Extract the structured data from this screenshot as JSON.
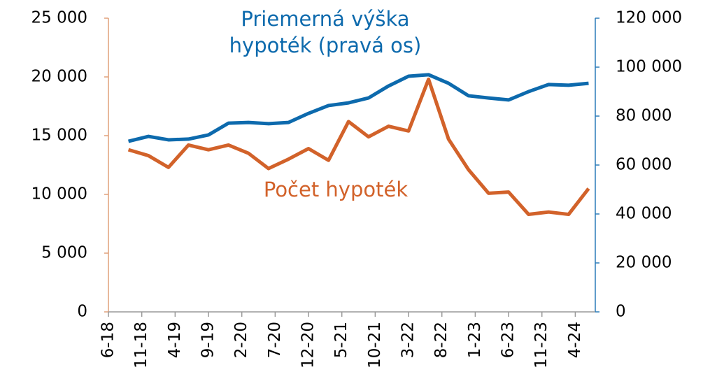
{
  "chart_data": {
    "type": "line",
    "x": [
      "9-18",
      "12-18",
      "3-19",
      "6-19",
      "9-19",
      "12-19",
      "3-20",
      "6-20",
      "9-20",
      "12-20",
      "3-21",
      "6-21",
      "9-21",
      "12-21",
      "3-22",
      "6-22",
      "9-22",
      "12-22",
      "3-23",
      "6-23",
      "9-23",
      "12-23",
      "3-24",
      "6-24"
    ],
    "xlim": [
      "6-18",
      "7-24"
    ],
    "xticks": [
      "6-18",
      "11-18",
      "4-19",
      "9-19",
      "2-20",
      "7-20",
      "12-20",
      "5-21",
      "10-21",
      "3-22",
      "8-22",
      "1-23",
      "6-23",
      "11-23",
      "4-24"
    ],
    "ylim": [
      0,
      25000
    ],
    "yticks": [
      0,
      {
        "value": 5000,
        "label": "5 000"
      },
      {
        "value": 10000,
        "label": "10 000"
      },
      {
        "value": 15000,
        "label": "15 000"
      },
      {
        "value": 20000,
        "label": "20 000"
      },
      {
        "value": 25000,
        "label": "25 000"
      }
    ],
    "y2lim": [
      0,
      120000
    ],
    "y2ticks": [
      0,
      {
        "value": 20000,
        "label": "20 000"
      },
      {
        "value": 40000,
        "label": "40 000"
      },
      {
        "value": 60000,
        "label": "60 000"
      },
      {
        "value": 80000,
        "label": "80 000"
      },
      {
        "value": 100000,
        "label": "100 000"
      },
      {
        "value": 120000,
        "label": "120 000"
      }
    ],
    "series": [
      {
        "name": "Počet hypoték",
        "color": "#d2622a",
        "values": [
          13800,
          13300,
          12300,
          14200,
          13800,
          14200,
          13500,
          12200,
          13000,
          13900,
          12900,
          16200,
          14900,
          15800,
          15400,
          19800,
          14700,
          12100,
          10100,
          10200,
          8300,
          8500,
          8300,
          10500
        ]
      },
      {
        "name": "Priemerná výška hypoték (pravá os)",
        "color": "#0d6aad",
        "axis": "y2",
        "values": [
          69700,
          71700,
          70300,
          70600,
          72300,
          77100,
          77400,
          76900,
          77400,
          81100,
          84300,
          85400,
          87400,
          92300,
          96300,
          96900,
          93400,
          88300,
          87400,
          86600,
          90000,
          92900,
          92600,
          93400
        ]
      }
    ]
  }
}
